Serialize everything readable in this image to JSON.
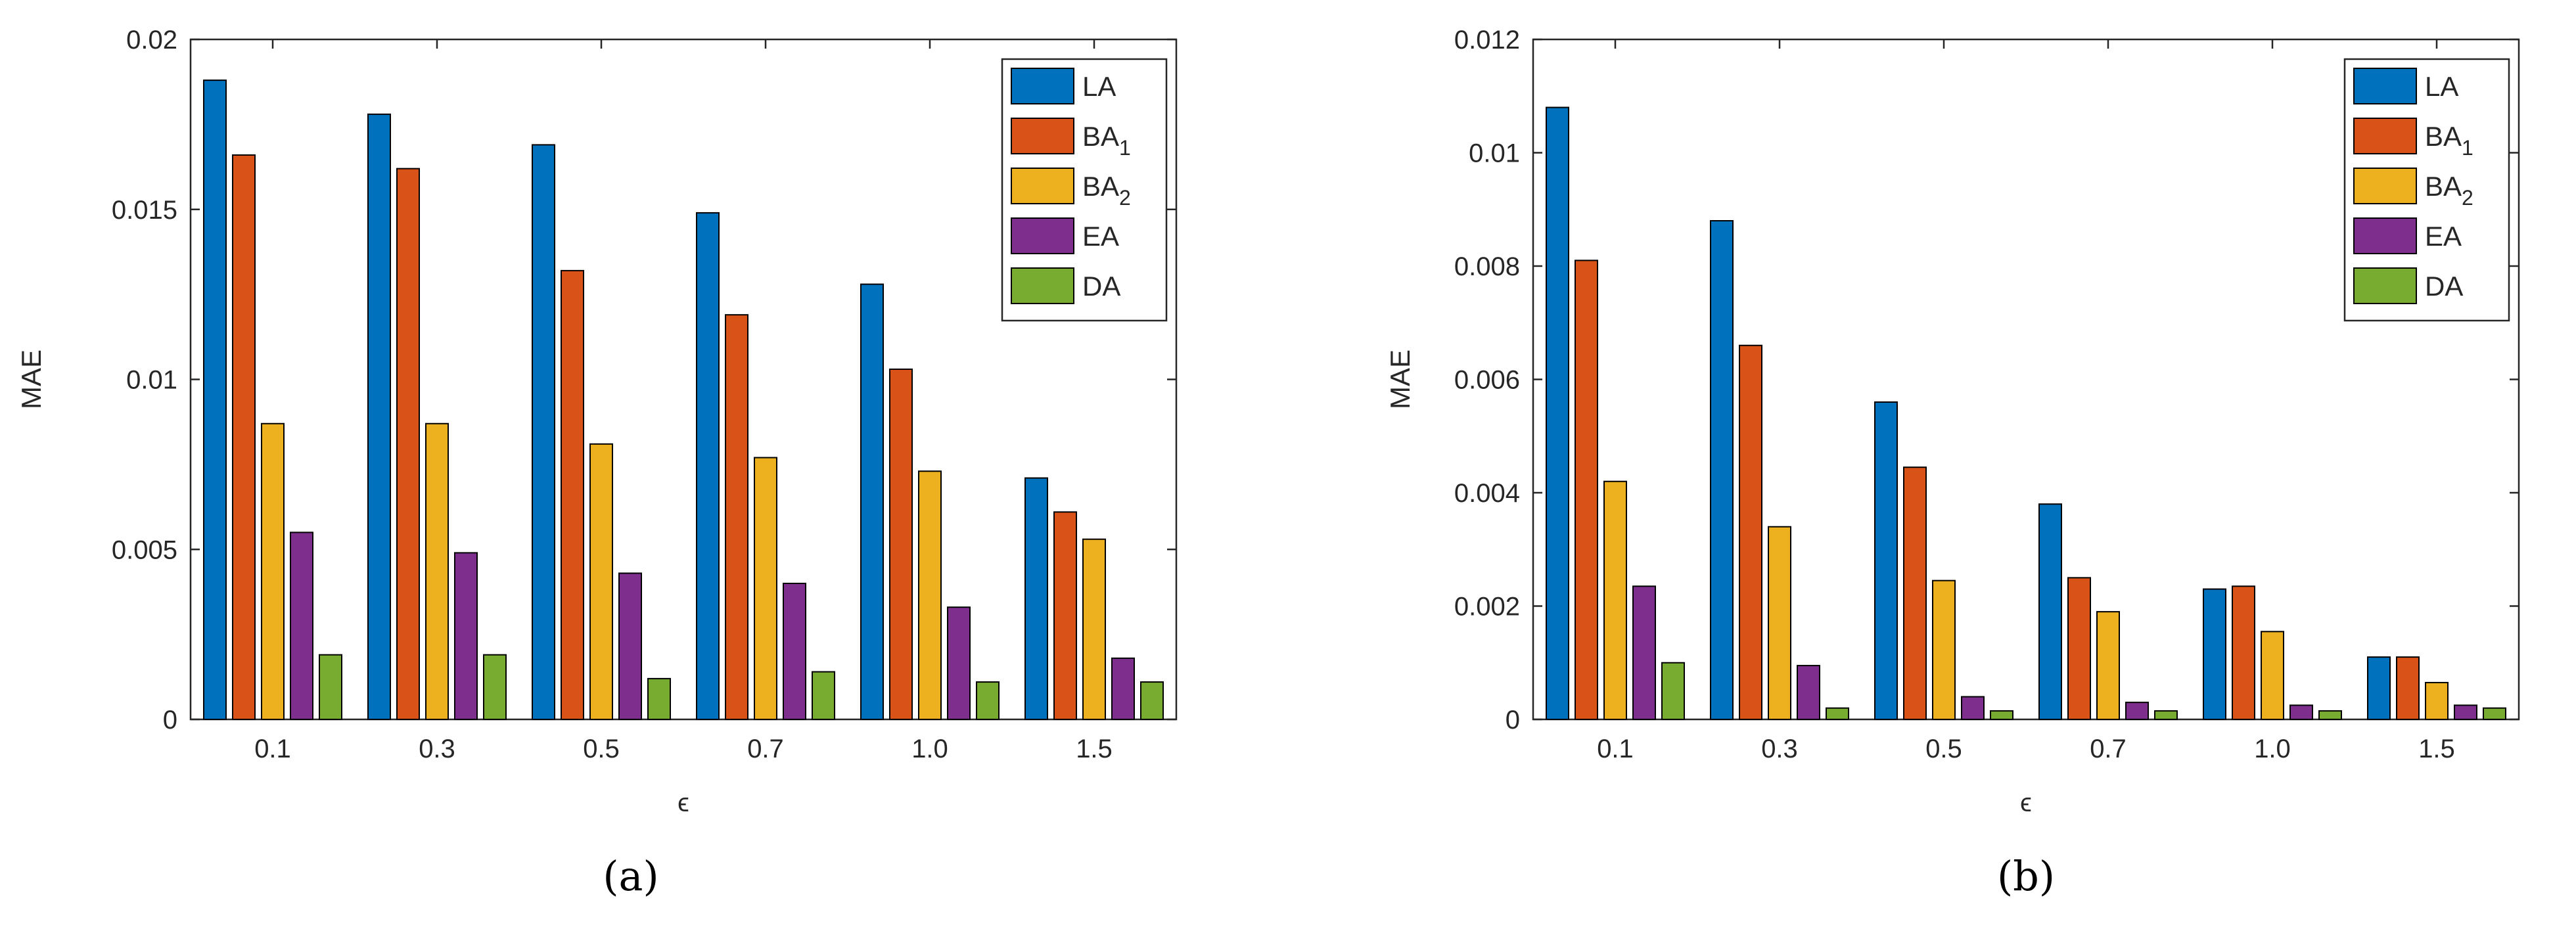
{
  "colors": {
    "LA": "#0072BD",
    "BA1": "#D95319",
    "BA2": "#EDB120",
    "EA": "#7E2F8E",
    "DA": "#77AC30",
    "axis": "#262626"
  },
  "chart_data": [
    {
      "type": "bar",
      "caption": "(a)",
      "xlabel": "ϵ",
      "ylabel": "MAE",
      "ylim": [
        0,
        0.02
      ],
      "yticks": [
        0,
        0.005,
        0.01,
        0.015,
        0.02
      ],
      "ytick_labels": [
        "0",
        "0.005",
        "0.01",
        "0.015",
        "0.02"
      ],
      "categories": [
        "0.1",
        "0.3",
        "0.5",
        "0.7",
        "1.0",
        "1.5"
      ],
      "legend_position": "top-right",
      "series": [
        {
          "key": "LA",
          "name": "LA",
          "sub": "",
          "values": [
            0.0188,
            0.0178,
            0.0169,
            0.0149,
            0.0128,
            0.0071
          ]
        },
        {
          "key": "BA1",
          "name": "BA",
          "sub": "1",
          "values": [
            0.0166,
            0.0162,
            0.0132,
            0.0119,
            0.0103,
            0.0061
          ]
        },
        {
          "key": "BA2",
          "name": "BA",
          "sub": "2",
          "values": [
            0.0087,
            0.0087,
            0.0081,
            0.0077,
            0.0073,
            0.0053
          ]
        },
        {
          "key": "EA",
          "name": "EA",
          "sub": "",
          "values": [
            0.0055,
            0.0049,
            0.0043,
            0.004,
            0.0033,
            0.0018
          ]
        },
        {
          "key": "DA",
          "name": "DA",
          "sub": "",
          "values": [
            0.0019,
            0.0019,
            0.0012,
            0.0014,
            0.0011,
            0.0011
          ]
        }
      ]
    },
    {
      "type": "bar",
      "caption": "(b)",
      "xlabel": "ϵ",
      "ylabel": "MAE",
      "ylim": [
        0,
        0.012
      ],
      "yticks": [
        0,
        0.002,
        0.004,
        0.006,
        0.008,
        0.01,
        0.012
      ],
      "ytick_labels": [
        "0",
        "0.002",
        "0.004",
        "0.006",
        "0.008",
        "0.01",
        "0.012"
      ],
      "categories": [
        "0.1",
        "0.3",
        "0.5",
        "0.7",
        "1.0",
        "1.5"
      ],
      "legend_position": "top-right",
      "series": [
        {
          "key": "LA",
          "name": "LA",
          "sub": "",
          "values": [
            0.0108,
            0.0088,
            0.0056,
            0.0038,
            0.0023,
            0.0011
          ]
        },
        {
          "key": "BA1",
          "name": "BA",
          "sub": "1",
          "values": [
            0.0081,
            0.0066,
            0.00445,
            0.0025,
            0.00235,
            0.0011
          ]
        },
        {
          "key": "BA2",
          "name": "BA",
          "sub": "2",
          "values": [
            0.0042,
            0.0034,
            0.00245,
            0.0019,
            0.00155,
            0.00065
          ]
        },
        {
          "key": "EA",
          "name": "EA",
          "sub": "",
          "values": [
            0.00235,
            0.00095,
            0.0004,
            0.0003,
            0.00025,
            0.00025
          ]
        },
        {
          "key": "DA",
          "name": "DA",
          "sub": "",
          "values": [
            0.001,
            0.0002,
            0.00015,
            0.00015,
            0.00015,
            0.0002
          ]
        }
      ]
    }
  ]
}
